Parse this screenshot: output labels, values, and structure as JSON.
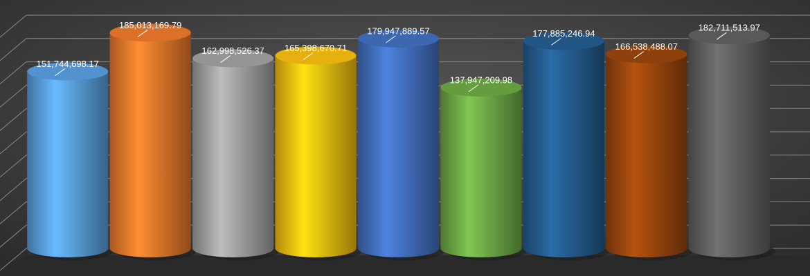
{
  "chart_data": {
    "type": "cylinder",
    "values": [
      151744698.17,
      185013169.79,
      162998526.37,
      165398670.71,
      179947889.57,
      137947209.98,
      177885246.94,
      166538488.07,
      182711513.97
    ],
    "value_labels": [
      "151,744,698.17",
      "185,013,169.79",
      "162,998,526.37",
      "165,398,670.71",
      "179,947,889.57",
      "137,947,209.98",
      "177,885,246.94",
      "166,538,488.07",
      "182,711,513.97"
    ],
    "colors": [
      "#5ba3e6",
      "#f47c2c",
      "#a5a5a5",
      "#ffc510",
      "#4472c4",
      "#70ad47",
      "#255e91",
      "#9e480e",
      "#636363"
    ],
    "ylim": [
      0,
      200000000
    ],
    "yticks": [
      0,
      20000000,
      40000000,
      60000000,
      80000000,
      100000000,
      120000000,
      140000000,
      160000000,
      180000000,
      200000000
    ],
    "grid": true
  }
}
